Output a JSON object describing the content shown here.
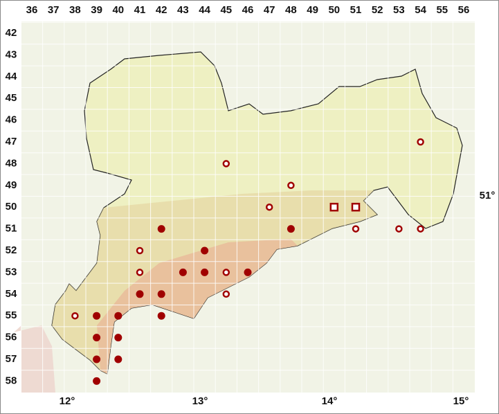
{
  "map": {
    "columns": [
      36,
      37,
      38,
      39,
      40,
      41,
      42,
      43,
      44,
      45,
      46,
      47,
      48,
      49,
      50,
      51,
      52,
      53,
      54,
      55,
      56
    ],
    "rows": [
      42,
      43,
      44,
      45,
      46,
      47,
      48,
      49,
      50,
      51,
      52,
      53,
      54,
      55,
      56,
      57,
      58
    ],
    "longitudes": [
      "12°",
      "13°",
      "14°",
      "15°"
    ],
    "latitudes": [
      "51°"
    ],
    "marker_color": "#a00000",
    "records": [
      {
        "col": 42,
        "row": 51,
        "marker": "dot"
      },
      {
        "col": 48,
        "row": 51,
        "marker": "dot"
      },
      {
        "col": 44,
        "row": 52,
        "marker": "dot"
      },
      {
        "col": 43,
        "row": 53,
        "marker": "dot"
      },
      {
        "col": 44,
        "row": 53,
        "marker": "dot"
      },
      {
        "col": 46,
        "row": 53,
        "marker": "dot"
      },
      {
        "col": 41,
        "row": 54,
        "marker": "dot"
      },
      {
        "col": 42,
        "row": 54,
        "marker": "dot"
      },
      {
        "col": 42,
        "row": 55,
        "marker": "dot"
      },
      {
        "col": 39,
        "row": 55,
        "marker": "dot"
      },
      {
        "col": 40,
        "row": 55,
        "marker": "dot"
      },
      {
        "col": 39,
        "row": 56,
        "marker": "dot"
      },
      {
        "col": 40,
        "row": 56,
        "marker": "dot"
      },
      {
        "col": 39,
        "row": 57,
        "marker": "dot"
      },
      {
        "col": 40,
        "row": 57,
        "marker": "dot"
      },
      {
        "col": 39,
        "row": 58,
        "marker": "dot"
      },
      {
        "col": 54,
        "row": 47,
        "marker": "circle"
      },
      {
        "col": 45,
        "row": 48,
        "marker": "circle"
      },
      {
        "col": 48,
        "row": 49,
        "marker": "circle"
      },
      {
        "col": 47,
        "row": 50,
        "marker": "circle"
      },
      {
        "col": 51,
        "row": 51,
        "marker": "circle"
      },
      {
        "col": 53,
        "row": 51,
        "marker": "circle"
      },
      {
        "col": 54,
        "row": 51,
        "marker": "circle"
      },
      {
        "col": 41,
        "row": 52,
        "marker": "circle"
      },
      {
        "col": 41,
        "row": 53,
        "marker": "circle"
      },
      {
        "col": 45,
        "row": 53,
        "marker": "circle"
      },
      {
        "col": 45,
        "row": 54,
        "marker": "circle"
      },
      {
        "col": 38,
        "row": 55,
        "marker": "circle"
      },
      {
        "col": 50,
        "row": 50,
        "marker": "square"
      },
      {
        "col": 51,
        "row": 50,
        "marker": "square"
      }
    ]
  }
}
